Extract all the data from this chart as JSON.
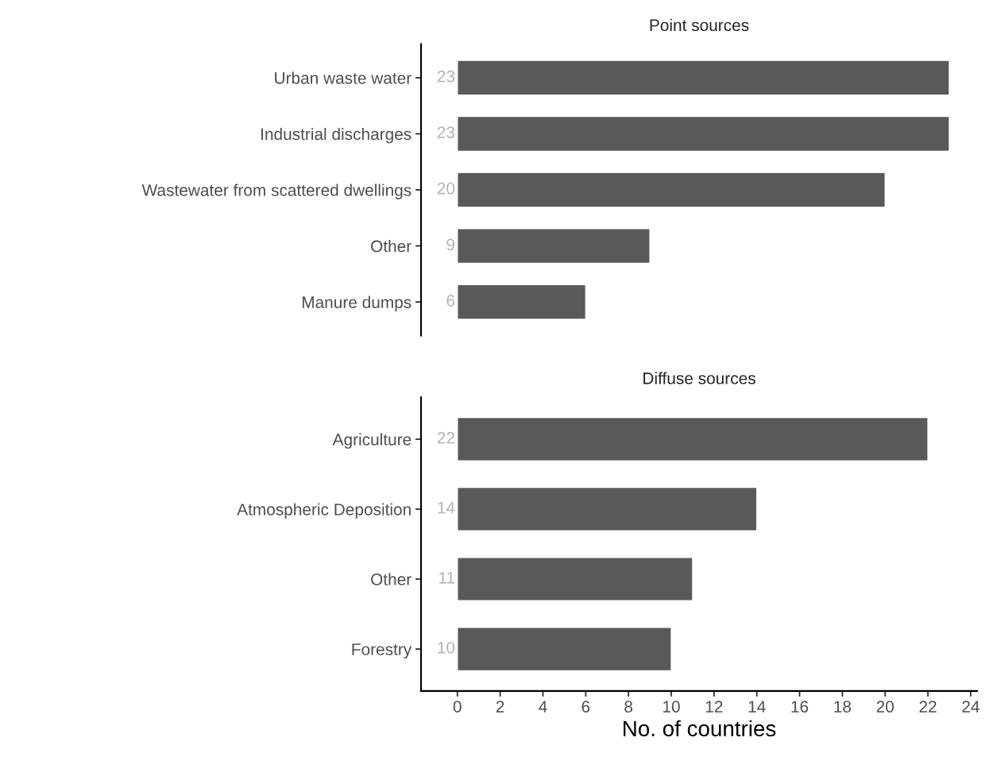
{
  "chart_data": [
    {
      "type": "bar",
      "title": "Point sources",
      "orientation": "horizontal",
      "categories": [
        "Urban waste water",
        "Industrial discharges",
        "Wastewater from scattered dwellings",
        "Other",
        "Manure dumps"
      ],
      "values": [
        23,
        23,
        20,
        9,
        6
      ],
      "color": "#595959",
      "data_labels": true,
      "tick_labels": "y",
      "grid": false,
      "legend": false
    },
    {
      "type": "bar",
      "title": "Diffuse sources",
      "orientation": "horizontal",
      "categories": [
        "Agriculture",
        "Atmospheric Deposition",
        "Other",
        "Forestry"
      ],
      "values": [
        22,
        14,
        11,
        10
      ],
      "color": "#595959",
      "xlim": [
        -1.7,
        24.3
      ],
      "xticks": [
        0,
        2,
        4,
        6,
        8,
        10,
        12,
        14,
        16,
        18,
        20,
        22,
        24
      ],
      "xlabel": "No. of countries",
      "data_labels": true,
      "grid": false,
      "legend": false
    }
  ]
}
